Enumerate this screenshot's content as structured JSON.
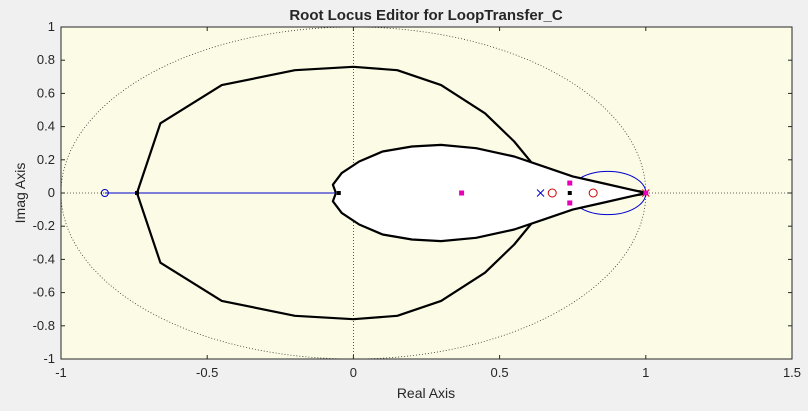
{
  "chart_data": {
    "type": "root-locus",
    "title": "Root Locus Editor for LoopTransfer_C",
    "xlabel": "Real Axis",
    "ylabel": "Imag Axis",
    "xlim": [
      -1,
      1.5
    ],
    "ylim": [
      -1,
      1
    ],
    "xticks": [
      "-1",
      "-0.5",
      "0",
      "0.5",
      "1",
      "1.5"
    ],
    "yticks": [
      "1",
      "0.8",
      "0.6",
      "0.4",
      "0.2",
      "0",
      "-0.2",
      "-0.4",
      "-0.6",
      "-0.8",
      "-1"
    ],
    "xtick_values": [
      -1,
      -0.5,
      0,
      0.5,
      1,
      1.5
    ],
    "ytick_values": [
      1,
      0.8,
      0.6,
      0.4,
      0.2,
      0,
      -0.2,
      -0.4,
      -0.6,
      -0.8,
      -1
    ],
    "unit_circle": true,
    "colors": {
      "plot_background": "#fcfce6",
      "stable_region": "#ffffff",
      "compensator_locus": "#0000cc",
      "plant_locus": "#000000",
      "closed_loop_poles": "#e600b8",
      "plant_zeros": "#cc0000",
      "grid": "#333333"
    },
    "compensator_locus": {
      "real_axis_segment": [
        -0.85,
        1.0
      ],
      "circle_center": [
        0.87,
        0.0
      ],
      "circle_radius": 0.13
    },
    "plant_locus": {
      "outer_branch": [
        [
          -0.74,
          0
        ],
        [
          -0.66,
          0.42
        ],
        [
          -0.45,
          0.65
        ],
        [
          -0.2,
          0.74
        ],
        [
          0,
          0.76
        ],
        [
          0.15,
          0.74
        ],
        [
          0.3,
          0.65
        ],
        [
          0.45,
          0.48
        ],
        [
          0.55,
          0.31
        ],
        [
          0.62,
          0.16
        ],
        [
          0.68,
          0.07
        ],
        [
          0.74,
          0.04
        ],
        [
          0.85,
          0.03
        ],
        [
          0.98,
          0.01
        ],
        [
          1.0,
          0
        ]
      ],
      "inner_branch": [
        [
          -0.06,
          0
        ],
        [
          -0.07,
          0.05
        ],
        [
          -0.04,
          0.12
        ],
        [
          0.02,
          0.19
        ],
        [
          0.1,
          0.25
        ],
        [
          0.2,
          0.28
        ],
        [
          0.3,
          0.29
        ],
        [
          0.42,
          0.27
        ],
        [
          0.55,
          0.22
        ],
        [
          0.65,
          0.16
        ],
        [
          0.75,
          0.1
        ],
        [
          0.85,
          0.06
        ],
        [
          0.95,
          0.02
        ],
        [
          1.0,
          0
        ]
      ]
    },
    "markers": {
      "compensator_zeros": [
        [
          -0.85,
          0
        ]
      ],
      "compensator_poles": [
        [
          0.64,
          0
        ]
      ],
      "plant_zeros": [
        [
          0.68,
          0
        ],
        [
          0.82,
          0
        ]
      ],
      "plant_poles": [
        [
          1.0,
          0
        ]
      ],
      "closed_loop_poles": [
        [
          0.37,
          0
        ],
        [
          0.74,
          0.06
        ],
        [
          0.74,
          -0.06
        ],
        [
          1.0,
          0
        ]
      ],
      "locus_points": [
        [
          -0.74,
          0
        ],
        [
          -0.05,
          0
        ],
        [
          0.74,
          0
        ]
      ]
    }
  }
}
